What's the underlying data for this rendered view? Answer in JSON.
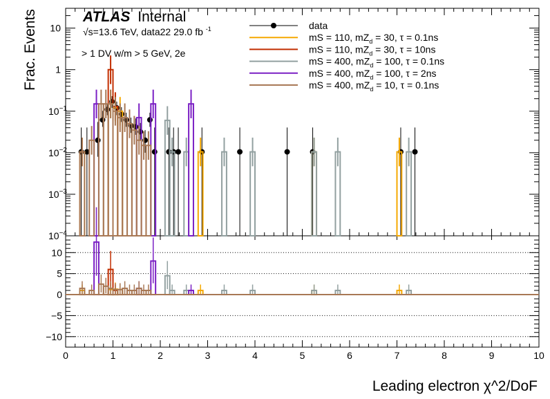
{
  "chart_data": {
    "type": "histogram",
    "title": "",
    "xlabel": "Leading electron χ^2/DoF",
    "xlim": [
      0,
      10
    ],
    "x_ticks": [
      "0",
      "1",
      "2",
      "3",
      "4",
      "5",
      "6",
      "7",
      "8",
      "9",
      "10"
    ],
    "legend_placement": "top-right",
    "annotations": {
      "brand": "ATLAS",
      "status": "Internal",
      "energy_line": "√s=13.6 TeV, data22 29.0 fb",
      "energy_sup": "-1",
      "selection": "> 1 DV w/m > 5 GeV, 2e"
    },
    "top_panel": {
      "ylabel": "Frac. Events",
      "yscale": "log",
      "ylim": [
        0.0001,
        30
      ],
      "y_ticks": [
        {
          "value": 10,
          "label": "10"
        },
        {
          "value": 1,
          "label": "1"
        },
        {
          "value": 0.1,
          "label": "10",
          "exp": "−1"
        },
        {
          "value": 0.01,
          "label": "10",
          "exp": "−2"
        },
        {
          "value": 0.001,
          "label": "10",
          "exp": "−3"
        },
        {
          "value": 0.0001,
          "label": "10",
          "exp": "−4"
        }
      ]
    },
    "bottom_panel": {
      "ylim": [
        -12.5,
        14
      ],
      "y_ticks": [
        "10",
        "5",
        "0",
        "−5",
        "−10"
      ],
      "y_tick_values": [
        10,
        5,
        0,
        -5,
        -10
      ],
      "dotted_gridlines": [
        10,
        5,
        -5,
        -10
      ]
    },
    "series": [
      {
        "name": "data",
        "style": "points",
        "color": "#000000",
        "points": [
          {
            "x": 0.33,
            "y": 0.0105,
            "err_lo": 0.0105,
            "err_hi": 0.03
          },
          {
            "x": 0.45,
            "y": 0.0105,
            "err_lo": 0.0105,
            "err_hi": 0.03
          },
          {
            "x": 0.68,
            "y": 0.02,
            "err_lo": 0.012,
            "err_hi": 0.035
          },
          {
            "x": 0.78,
            "y": 0.062,
            "err_lo": 0.02,
            "err_hi": 0.04
          },
          {
            "x": 0.88,
            "y": 0.11,
            "err_lo": 0.03,
            "err_hi": 0.04
          },
          {
            "x": 0.98,
            "y": 0.17,
            "err_lo": 0.05,
            "err_hi": 0.06
          },
          {
            "x": 1.08,
            "y": 0.12,
            "err_lo": 0.04,
            "err_hi": 0.05
          },
          {
            "x": 1.18,
            "y": 0.085,
            "err_lo": 0.03,
            "err_hi": 0.04
          },
          {
            "x": 1.28,
            "y": 0.062,
            "err_lo": 0.02,
            "err_hi": 0.03
          },
          {
            "x": 1.38,
            "y": 0.045,
            "err_lo": 0.015,
            "err_hi": 0.025
          },
          {
            "x": 1.48,
            "y": 0.042,
            "err_lo": 0.015,
            "err_hi": 0.025
          },
          {
            "x": 1.58,
            "y": 0.032,
            "err_lo": 0.012,
            "err_hi": 0.02
          },
          {
            "x": 1.68,
            "y": 0.02,
            "err_lo": 0.01,
            "err_hi": 0.015
          },
          {
            "x": 1.78,
            "y": 0.062,
            "err_lo": 0.02,
            "err_hi": 0.03
          },
          {
            "x": 1.88,
            "y": 0.0105,
            "err_lo": 0.0105,
            "err_hi": 0.03
          },
          {
            "x": 2.18,
            "y": 0.0105,
            "err_lo": 0.0105,
            "err_hi": 0.03
          },
          {
            "x": 2.28,
            "y": 0.0105,
            "err_lo": 0.0105,
            "err_hi": 0.03
          },
          {
            "x": 2.38,
            "y": 0.0105,
            "err_lo": 0.0105,
            "err_hi": 0.03
          },
          {
            "x": 2.88,
            "y": 0.0105,
            "err_lo": 0.0105,
            "err_hi": 0.03
          },
          {
            "x": 3.68,
            "y": 0.0105,
            "err_lo": 0.0105,
            "err_hi": 0.03
          },
          {
            "x": 4.68,
            "y": 0.0105,
            "err_lo": 0.0105,
            "err_hi": 0.03
          },
          {
            "x": 5.22,
            "y": 0.0105,
            "err_lo": 0.0105,
            "err_hi": 0.03
          },
          {
            "x": 7.08,
            "y": 0.0105,
            "err_lo": 0.0105,
            "err_hi": 0.03
          },
          {
            "x": 7.38,
            "y": 0.0105,
            "err_lo": 0.0105,
            "err_hi": 0.03
          }
        ]
      },
      {
        "name": "mS = 110, mZ_d = 30, τ = 0.1ns",
        "style": "step",
        "color": "#f5a800",
        "bins": [
          {
            "x0": 0.3,
            "x1": 0.4,
            "y": 0.0105,
            "r": 1.0
          },
          {
            "x0": 0.9,
            "x1": 1.0,
            "y": 0.15,
            "r": 1.2
          },
          {
            "x0": 1.0,
            "x1": 1.1,
            "y": 0.12,
            "r": 1.3
          },
          {
            "x0": 1.1,
            "x1": 1.2,
            "y": 0.1,
            "r": 1.2
          },
          {
            "x0": 2.8,
            "x1": 2.9,
            "y": 0.0105,
            "r": 1.0
          },
          {
            "x0": 5.2,
            "x1": 5.3,
            "y": 0.0105,
            "r": 1.0
          },
          {
            "x0": 7.0,
            "x1": 7.1,
            "y": 0.0105,
            "r": 1.0
          }
        ]
      },
      {
        "name": "mS = 110, mZ_d = 30, τ = 10ns",
        "style": "step",
        "color": "#c22e00",
        "bins": [
          {
            "x0": 0.9,
            "x1": 1.0,
            "y": 1.0,
            "r": 6.0
          },
          {
            "x0": 1.0,
            "x1": 1.1,
            "y": 0.13,
            "r": 1.0
          }
        ]
      },
      {
        "name": "mS = 400, mZ_d = 100, τ = 0.1ns",
        "style": "step",
        "color": "#92a0a0",
        "bins": [
          {
            "x0": 2.1,
            "x1": 2.2,
            "y": 0.06,
            "r": 4.5
          },
          {
            "x0": 2.2,
            "x1": 2.3,
            "y": 0.0105,
            "r": 1.0
          },
          {
            "x0": 2.5,
            "x1": 2.6,
            "y": 0.0105,
            "r": 1.0
          },
          {
            "x0": 3.3,
            "x1": 3.4,
            "y": 0.0105,
            "r": 1.0
          },
          {
            "x0": 3.9,
            "x1": 4.0,
            "y": 0.0105,
            "r": 1.0
          },
          {
            "x0": 5.2,
            "x1": 5.3,
            "y": 0.0105,
            "r": 1.0
          },
          {
            "x0": 5.7,
            "x1": 5.8,
            "y": 0.0105,
            "r": 1.0
          },
          {
            "x0": 7.2,
            "x1": 7.3,
            "y": 0.0105,
            "r": 1.0
          }
        ]
      },
      {
        "name": "mS = 400, mZ_d = 100, τ = 2ns",
        "style": "step",
        "color": "#7a1fc4",
        "bins": [
          {
            "x0": 0.6,
            "x1": 0.7,
            "y": 0.15,
            "r": 12.5
          },
          {
            "x0": 1.5,
            "x1": 1.6,
            "y": 0.07,
            "r": 1.5
          },
          {
            "x0": 1.8,
            "x1": 1.9,
            "y": 0.15,
            "r": 8.0
          },
          {
            "x0": 2.6,
            "x1": 2.7,
            "y": 0.15,
            "r": 1.0
          }
        ]
      },
      {
        "name": "mS = 400, mZ_d = 10, τ = 0.1ns",
        "style": "step",
        "color": "#a87855",
        "bins": [
          {
            "x0": 0.3,
            "x1": 0.4,
            "y": 0.0105,
            "r": 1.5
          },
          {
            "x0": 0.5,
            "x1": 0.6,
            "y": 0.02,
            "r": 1.0
          },
          {
            "x0": 0.7,
            "x1": 0.8,
            "y": 0.15,
            "r": 2.5
          },
          {
            "x0": 0.8,
            "x1": 0.9,
            "y": 0.15,
            "r": 2.0
          },
          {
            "x0": 0.9,
            "x1": 1.0,
            "y": 0.15,
            "r": 1.5
          },
          {
            "x0": 1.0,
            "x1": 1.1,
            "y": 0.1,
            "r": 1.2
          },
          {
            "x0": 1.1,
            "x1": 1.2,
            "y": 0.07,
            "r": 1.2
          },
          {
            "x0": 1.2,
            "x1": 1.3,
            "y": 0.07,
            "r": 1.5
          },
          {
            "x0": 1.3,
            "x1": 1.4,
            "y": 0.05,
            "r": 1.0
          },
          {
            "x0": 1.4,
            "x1": 1.5,
            "y": 0.035,
            "r": 1.0
          },
          {
            "x0": 1.5,
            "x1": 1.6,
            "y": 0.02,
            "r": 1.5
          },
          {
            "x0": 1.6,
            "x1": 1.7,
            "y": 0.015,
            "r": 1.0
          },
          {
            "x0": 1.7,
            "x1": 1.8,
            "y": 0.015,
            "r": 1.0
          }
        ]
      }
    ]
  }
}
